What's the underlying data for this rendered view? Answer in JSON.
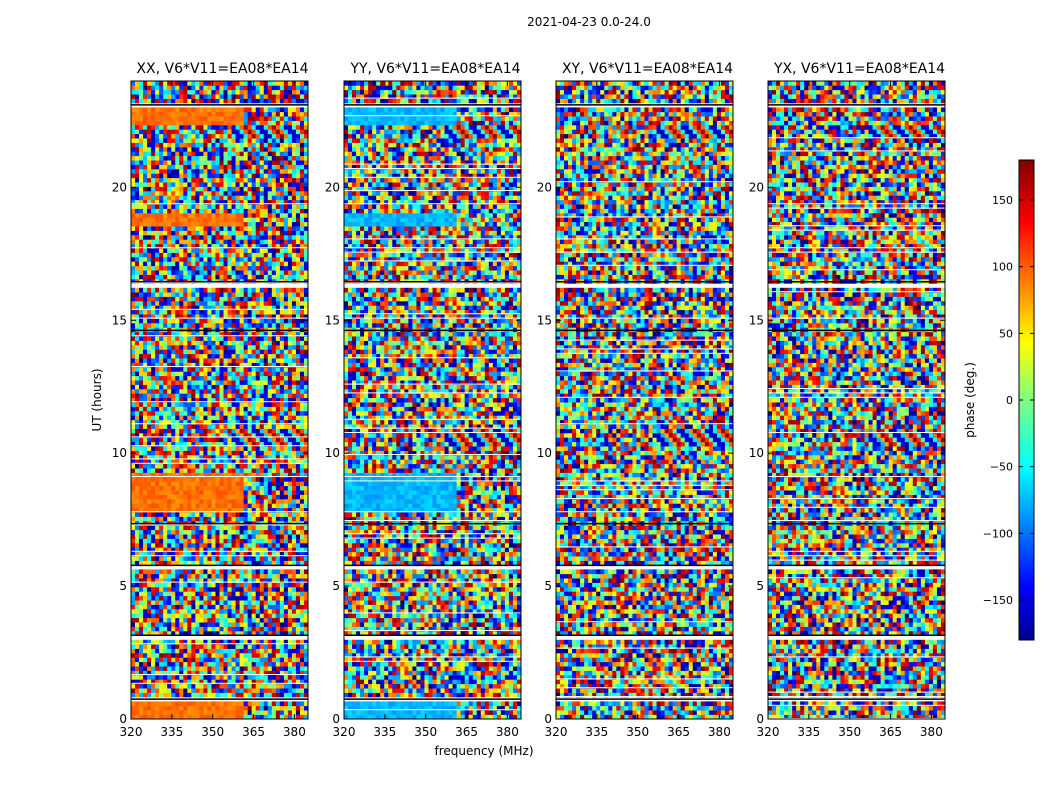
{
  "figure": {
    "suptitle": "2021-04-23 0.0-24.0"
  },
  "chart_data": {
    "type": "heatmap",
    "xlabel": "frequency (MHz)",
    "ylabel": "UT (hours)",
    "xlim": [
      320,
      385
    ],
    "ylim": [
      0,
      24
    ],
    "xticks": [
      320,
      335,
      350,
      365,
      380
    ],
    "yticks": [
      0,
      5,
      10,
      15,
      20
    ],
    "panels": [
      {
        "title": "XX, V6*V11=EA08*EA14",
        "base_phase": 95,
        "coherent": true
      },
      {
        "title": "YY, V6*V11=EA08*EA14",
        "base_phase": -70,
        "coherent": true
      },
      {
        "title": "XY, V6*V11=EA08*EA14",
        "base_phase": null,
        "coherent": false
      },
      {
        "title": "YX, V6*V11=EA08*EA14",
        "base_phase": null,
        "coherent": false
      }
    ],
    "coherent_bands_ut": [
      [
        0.0,
        0.6
      ],
      [
        7.8,
        9.2
      ],
      [
        18.5,
        19.0
      ],
      [
        22.3,
        23.0
      ]
    ],
    "fringe_bands_ut": [
      [
        10.2,
        11.0
      ],
      [
        21.8,
        22.4
      ]
    ],
    "flagged_ut": [
      [
        0.6,
        0.75
      ],
      [
        3.05,
        3.15
      ],
      [
        5.7,
        5.78
      ],
      [
        7.2,
        7.35
      ],
      [
        14.5,
        14.62
      ],
      [
        16.3,
        16.45
      ],
      [
        22.95,
        23.1
      ]
    ],
    "colorbar": {
      "label": "phase (deg.)",
      "min": -180,
      "max": 180,
      "ticks": [
        150,
        100,
        50,
        0,
        -50,
        -100,
        -150
      ],
      "colormap": "jet"
    }
  }
}
